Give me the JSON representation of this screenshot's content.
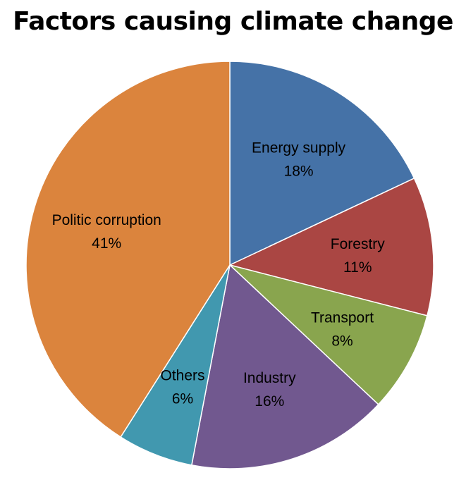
{
  "chart_data": {
    "type": "pie",
    "title": "Factors causing climate change",
    "slices": [
      {
        "label": "Energy supply",
        "value": 18,
        "value_label": "18%",
        "color": "#4572A7"
      },
      {
        "label": "Forestry",
        "value": 11,
        "value_label": "11%",
        "color": "#AA4643"
      },
      {
        "label": "Transport",
        "value": 8,
        "value_label": "8%",
        "color": "#89A54E"
      },
      {
        "label": "Industry",
        "value": 16,
        "value_label": "16%",
        "color": "#71588F"
      },
      {
        "label": "Others",
        "value": 6,
        "value_label": "6%",
        "color": "#4198AF"
      },
      {
        "label": "Politic corruption",
        "value": 41,
        "value_label": "41%",
        "color": "#DB843D"
      }
    ],
    "start_angle": "12 o'clock",
    "direction": "clockwise",
    "legend": "none"
  }
}
